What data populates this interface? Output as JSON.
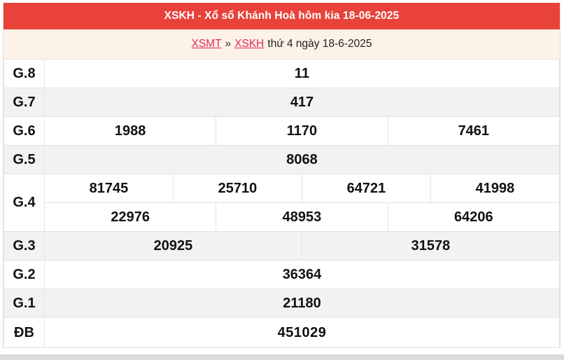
{
  "header": {
    "title": "XSKH - Xổ số Khánh Hoà hôm kia 18-06-2025"
  },
  "breadcrumb": {
    "region_link": "XSMT",
    "separator": "»",
    "province_link": "XSKH",
    "date_text": "thứ 4 ngày 18-6-2025"
  },
  "colors": {
    "header_bg": "#e9423a",
    "breadcrumb_bg": "#fdf2e7",
    "link_red": "#e12b56",
    "number_red": "#ef4137",
    "alt_row_bg": "#f2f2f2",
    "border": "#e3e3e3"
  },
  "table": {
    "rows": [
      {
        "label": "G.8",
        "cells": [
          "11"
        ]
      },
      {
        "label": "G.7",
        "cells": [
          "417"
        ]
      },
      {
        "label": "G.6",
        "cells": [
          "1988",
          "1170",
          "7461"
        ]
      },
      {
        "label": "G.5",
        "cells": [
          "8068"
        ]
      },
      {
        "label": "G.4",
        "cells_row1": [
          "81745",
          "25710",
          "64721",
          "41998"
        ],
        "cells_row2": [
          "22976",
          "48953",
          "64206"
        ]
      },
      {
        "label": "G.3",
        "cells": [
          "20925",
          "31578"
        ]
      },
      {
        "label": "G.2",
        "cells": [
          "36364"
        ]
      },
      {
        "label": "G.1",
        "cells": [
          "21180"
        ]
      },
      {
        "label": "ĐB",
        "cells": [
          "451029"
        ]
      }
    ]
  }
}
